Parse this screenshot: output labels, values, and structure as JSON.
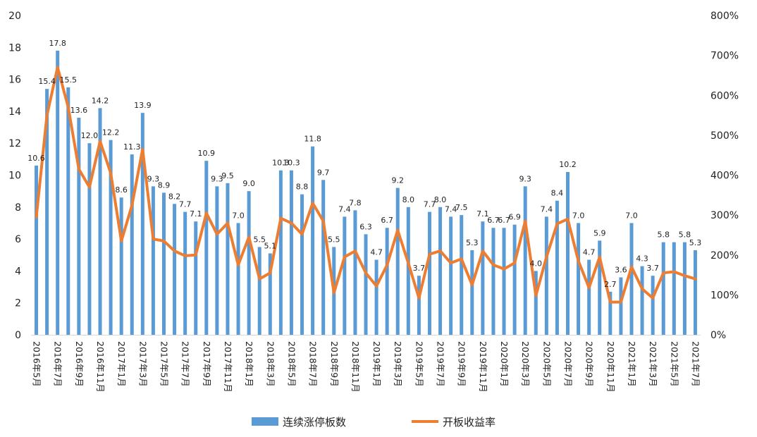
{
  "chart_data": {
    "type": "bar",
    "colors": {
      "bar": "#5B9BD5",
      "line": "#ED7D31",
      "axis": "#D9D9D9"
    },
    "y_left": {
      "min": 0,
      "max": 20,
      "ticks": [
        "0",
        "2",
        "4",
        "6",
        "8",
        "10",
        "12",
        "14",
        "16",
        "18",
        "20"
      ]
    },
    "y_right": {
      "min": 0,
      "max": 8,
      "ticks": [
        "0%",
        "100%",
        "200%",
        "300%",
        "400%",
        "500%",
        "600%",
        "700%",
        "800%"
      ]
    },
    "x_labels": [
      "2016年5月",
      "2016年7月",
      "2016年9月",
      "2016年11月",
      "2017年1月",
      "2017年3月",
      "2017年5月",
      "2017年7月",
      "2017年9月",
      "2017年11月",
      "2018年1月",
      "2018年3月",
      "2018年5月",
      "2018年7月",
      "2018年9月",
      "2018年11月",
      "2019年1月",
      "2019年3月",
      "2019年5月",
      "2019年7月",
      "2019年9月",
      "2019年11月",
      "2020年1月",
      "2020年3月",
      "2020年5月",
      "2020年7月",
      "2020年9月",
      "2020年11月",
      "2021年1月",
      "2021年3月",
      "2021年5月",
      "2021年7月"
    ],
    "series": [
      {
        "name": "连续涨停板数",
        "axis": "left",
        "type": "bar",
        "values": [
          10.6,
          15.4,
          17.8,
          15.5,
          13.6,
          12.0,
          14.2,
          12.2,
          8.6,
          11.3,
          13.9,
          9.3,
          8.9,
          8.2,
          7.7,
          7.1,
          10.9,
          9.3,
          9.5,
          7.0,
          9.0,
          5.5,
          5.1,
          10.3,
          10.3,
          8.8,
          11.8,
          9.7,
          5.5,
          7.4,
          7.8,
          6.3,
          4.7,
          6.7,
          9.2,
          8.0,
          3.7,
          7.7,
          8.0,
          7.4,
          7.5,
          5.3,
          7.1,
          6.7,
          6.7,
          6.9,
          9.3,
          4.0,
          7.4,
          8.4,
          10.2,
          7.0,
          4.7,
          5.9,
          2.7,
          3.6,
          7.0,
          4.3,
          3.7,
          5.8,
          5.8,
          5.8,
          5.3
        ],
        "labels": [
          "10.6",
          "15.4",
          "17.8",
          "15.5",
          "13.6",
          "12.0",
          "14.2",
          "12.2",
          "8.6",
          "11.3",
          "13.9",
          "9.3",
          "8.9",
          "8.2",
          "7.7",
          "7.1",
          "10.9",
          "9.3",
          "9.5",
          "7.0",
          "9.0",
          "5.5",
          "5.1",
          "10.3",
          "10.3",
          "8.8",
          "11.8",
          "9.7",
          "5.5",
          "7.4",
          "7.8",
          "6.3",
          "4.7",
          "6.7",
          "9.2",
          "8.0",
          "3.7",
          "7.7",
          "8.0",
          "7.4",
          "7.5",
          "5.3",
          "7.1",
          "6.7",
          "6.7",
          "6.9",
          "9.3",
          "4.0",
          "7.4",
          "8.4",
          "10.2",
          "7.0",
          "4.7",
          "5.9",
          "2.7",
          "3.6",
          "7.0",
          "4.3",
          "3.7",
          "5.8",
          "5.8",
          "5.8",
          "5.3"
        ],
        "shown": [
          true,
          true,
          true,
          true,
          true,
          true,
          true,
          true,
          true,
          true,
          true,
          true,
          true,
          true,
          true,
          true,
          true,
          true,
          true,
          true,
          true,
          true,
          true,
          true,
          true,
          true,
          true,
          true,
          true,
          true,
          true,
          true,
          true,
          true,
          true,
          true,
          true,
          true,
          true,
          true,
          true,
          true,
          true,
          true,
          true,
          true,
          true,
          true,
          true,
          true,
          true,
          true,
          true,
          true,
          true,
          true,
          true,
          true,
          true,
          true,
          false,
          true,
          true
        ]
      },
      {
        "name": "开板收益率",
        "axis": "right",
        "type": "line",
        "values": [
          2.95,
          5.5,
          6.7,
          5.7,
          4.15,
          3.7,
          4.85,
          4.05,
          2.35,
          3.25,
          4.65,
          2.4,
          2.35,
          2.1,
          1.98,
          2.0,
          3.05,
          2.52,
          2.8,
          1.75,
          2.45,
          1.4,
          1.55,
          2.92,
          2.8,
          2.52,
          3.3,
          2.85,
          1.05,
          1.95,
          2.1,
          1.55,
          1.22,
          1.75,
          2.62,
          1.8,
          0.92,
          2.02,
          2.1,
          1.8,
          1.9,
          1.25,
          2.1,
          1.75,
          1.65,
          1.8,
          2.85,
          0.98,
          1.95,
          2.78,
          2.9,
          1.85,
          1.18,
          1.95,
          0.82,
          0.82,
          1.7,
          1.15,
          0.92,
          1.55,
          1.58,
          1.48,
          1.4
        ]
      }
    ]
  }
}
